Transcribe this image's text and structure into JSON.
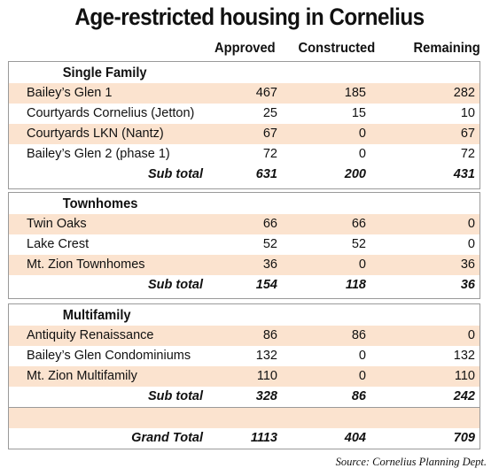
{
  "title": "Age-restricted housing in Cornelius",
  "columns": {
    "approved": "Approved",
    "constructed": "Constructed",
    "remaining": "Remaining"
  },
  "sections": [
    {
      "title": "Single Family",
      "rows": [
        {
          "name": "Bailey’s Glen 1",
          "approved": "467",
          "constructed": "185",
          "remaining": "282"
        },
        {
          "name": "Courtyards Cornelius (Jetton)",
          "approved": "25",
          "constructed": "15",
          "remaining": "10"
        },
        {
          "name": "Courtyards LKN (Nantz)",
          "approved": "67",
          "constructed": "0",
          "remaining": "67"
        },
        {
          "name": "Bailey’s Glen 2 (phase 1)",
          "approved": "72",
          "constructed": "0",
          "remaining": "72"
        }
      ],
      "subtotal": {
        "label": "Sub total",
        "approved": "631",
        "constructed": "200",
        "remaining": "431"
      }
    },
    {
      "title": "Townhomes",
      "rows": [
        {
          "name": "Twin Oaks",
          "approved": "66",
          "constructed": "66",
          "remaining": "0"
        },
        {
          "name": "Lake Crest",
          "approved": "52",
          "constructed": "52",
          "remaining": "0"
        },
        {
          "name": "Mt. Zion Townhomes",
          "approved": "36",
          "constructed": "0",
          "remaining": "36"
        }
      ],
      "subtotal": {
        "label": "Sub total",
        "approved": "154",
        "constructed": "118",
        "remaining": "36"
      }
    },
    {
      "title": "Multifamily",
      "rows": [
        {
          "name": "Antiquity Renaissance",
          "approved": "86",
          "constructed": "86",
          "remaining": "0"
        },
        {
          "name": "Bailey’s Glen Condominiums",
          "approved": "132",
          "constructed": "0",
          "remaining": "132"
        },
        {
          "name": "Mt. Zion Multifamily",
          "approved": "110",
          "constructed": "0",
          "remaining": "110"
        }
      ],
      "subtotal": {
        "label": "Sub total",
        "approved": "328",
        "constructed": "86",
        "remaining": "242"
      }
    }
  ],
  "grand_total": {
    "label": "Grand Total",
    "approved": "1113",
    "constructed": "404",
    "remaining": "709"
  },
  "source": "Source: Cornelius Planning Dept.",
  "colors": {
    "row_shade": "#fbe3cf",
    "border": "#9a9a9a"
  }
}
